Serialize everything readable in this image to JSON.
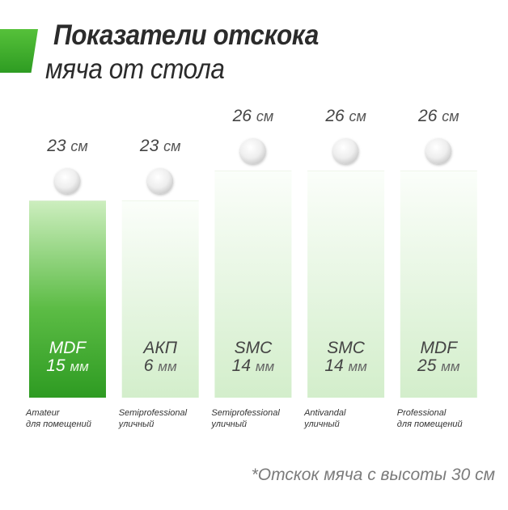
{
  "header": {
    "title_line1": "Показатели отскока",
    "title_line2": "мяча от стола"
  },
  "footnote": "*Отскок мяча с высоты 30 см",
  "colors": {
    "accent": "#3cae2c",
    "strong_bar_top": "#c9ecb9",
    "strong_bar_bottom": "#2e9b22",
    "light_bar_top": "#f8fdf5",
    "light_bar_bottom": "#d5efcc",
    "text_dark": "#444444"
  },
  "chart_data": {
    "type": "bar",
    "ylabel": "",
    "unit": "см",
    "thickness_unit": "мм",
    "ylim": [
      0,
      30
    ],
    "categories": [
      {
        "material": "MDF",
        "thickness": "15",
        "series": "Amateur",
        "usage": "для помещений",
        "highlighted": true
      },
      {
        "material": "АКП",
        "thickness": "6",
        "series": "Semiprofessional",
        "usage": "уличный",
        "highlighted": false
      },
      {
        "material": "SMC",
        "thickness": "14",
        "series": "Semiprofessional",
        "usage": "уличный",
        "highlighted": false
      },
      {
        "material": "SMC",
        "thickness": "14",
        "series": "Antivandal",
        "usage": "уличный",
        "highlighted": false
      },
      {
        "material": "MDF",
        "thickness": "25",
        "series": "Professional",
        "usage": "для помещений",
        "highlighted": false
      }
    ],
    "values": [
      23,
      23,
      26,
      26,
      26
    ],
    "value_labels": [
      "23",
      "23",
      "26",
      "26",
      "26"
    ]
  }
}
